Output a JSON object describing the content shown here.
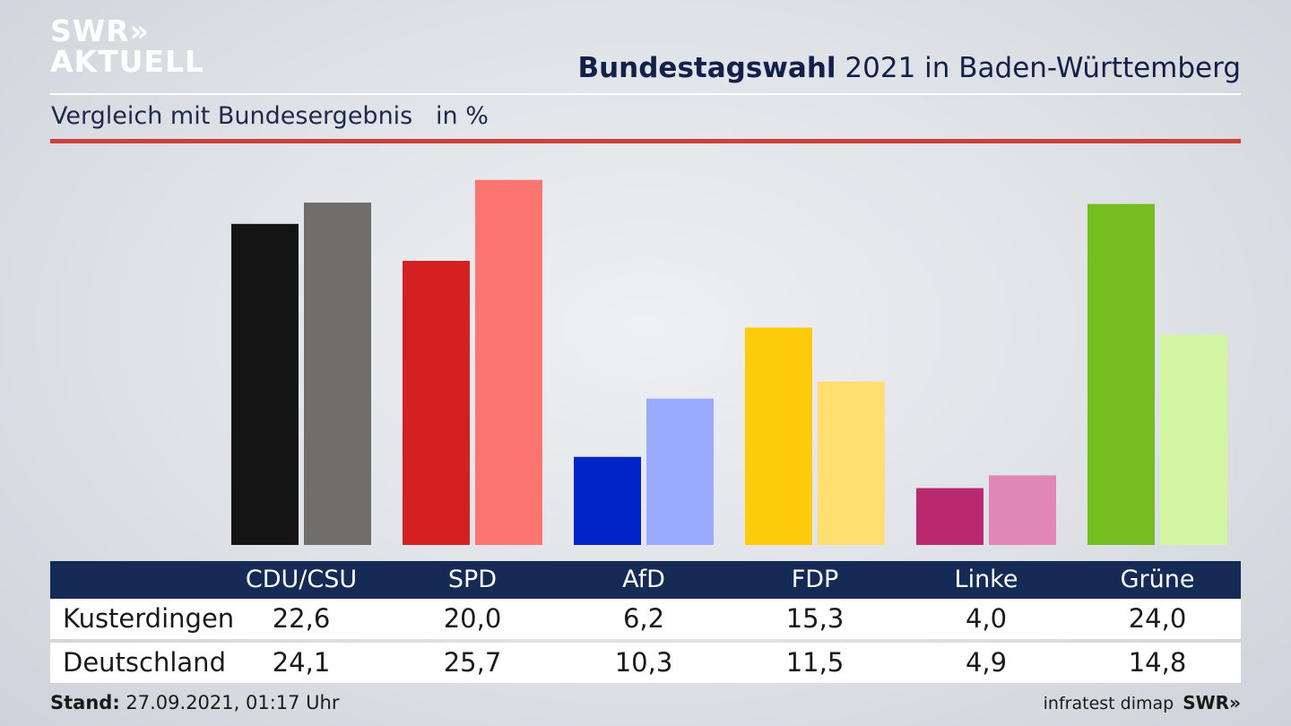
{
  "logo": {
    "line1": "SWR»",
    "line2": "AKTUELL"
  },
  "header": {
    "title_bold": "Bundestagswahl",
    "title_rest": " 2021 in Baden-Württemberg",
    "subtitle": "Vergleich mit Bundesergebnis   in %"
  },
  "chart_data": {
    "type": "bar",
    "categories": [
      "CDU/CSU",
      "SPD",
      "AfD",
      "FDP",
      "Linke",
      "Grüne"
    ],
    "series": [
      {
        "name": "Kusterdingen",
        "values": [
          22.6,
          20.0,
          6.2,
          15.3,
          4.0,
          24.0
        ]
      },
      {
        "name": "Deutschland",
        "values": [
          24.1,
          25.7,
          10.3,
          11.5,
          4.9,
          14.8
        ]
      }
    ],
    "colors": {
      "Kusterdingen": [
        "#141414",
        "#d42021",
        "#0023c8",
        "#ffcc0b",
        "#b9296f",
        "#76bd1f"
      ],
      "Deutschland": [
        "#6f6e6c",
        "#fe7470",
        "#9aaaff",
        "#ffe06f",
        "#e087b8",
        "#d2f5a3"
      ]
    },
    "ylim": [
      0,
      26.5
    ],
    "title": "Bundestagswahl 2021 in Baden-Württemberg"
  },
  "table": {
    "row_labels": [
      "Kusterdingen",
      "Deutschland"
    ],
    "rows": [
      [
        "22,6",
        "20,0",
        "6,2",
        "15,3",
        "4,0",
        "24,0"
      ],
      [
        "24,1",
        "25,7",
        "10,3",
        "11,5",
        "4,9",
        "14,8"
      ]
    ]
  },
  "footer": {
    "stand_label": "Stand:",
    "stand_value": " 27.09.2021, 01:17 Uhr",
    "source": "infratest dimap",
    "source_logo": "SWR»"
  }
}
